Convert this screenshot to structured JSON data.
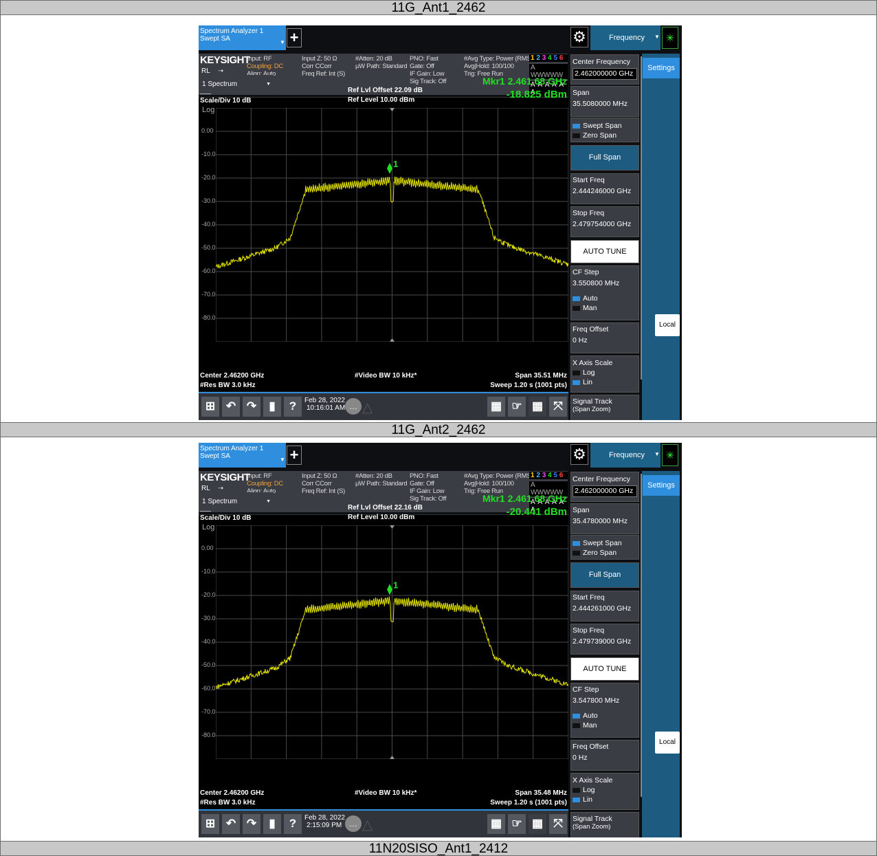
{
  "rows": [
    {
      "title": "11G_Ant1_2462"
    },
    {
      "title": "11G_Ant2_2462"
    },
    {
      "title": "11N20SISO_Ant1_2412"
    }
  ],
  "panels": [
    {
      "tab_line1": "Spectrum Analyzer 1",
      "tab_line2": "Swept SA",
      "freq_tab": "Frequency",
      "brand": "KEYSIGHT",
      "rl": "RL",
      "lxi": "LXI",
      "input": "Input: RF",
      "coupling": "Coupling: DC",
      "align": "Align: Auto",
      "input_z": "Input Z: 50 Ω",
      "corr": "Corr CCorr",
      "freq_ref": "Freq Ref: Int (S)",
      "atten": "#Atten: 20 dB",
      "uw_path": "µW Path: Standard",
      "pno": "PNO: Fast",
      "gate": "Gate: Off",
      "if_gain": "IF Gain: Low",
      "sig_track": "Sig Track: Off",
      "avg_type": "#Avg Type: Power (RMS)",
      "avg_hold": "Avg|Hold: 100/100",
      "trig": "Trig: Free Run",
      "trace_nums": "1 2 3 4 5 6",
      "trace_w": "A WWWWW",
      "trace_a": "A A A A A A",
      "spectrum_label": "1 Spectrum",
      "scale_div": "Scale/Div 10 dB",
      "log": "Log",
      "ref_offset": "Ref Lvl Offset 22.09 dB",
      "ref_level": "Ref Level 10.00 dBm",
      "mkr_freq": "Mkr1  2.461 68 GHz",
      "mkr_amp": "-18.825 dBm",
      "marker_label": "1",
      "yticks": [
        "0.00",
        "-10.0",
        "-20.0",
        "-30.0",
        "-40.0",
        "-50.0",
        "-60.0",
        "-70.0",
        "-80.0"
      ],
      "center": "Center 2.46200 GHz",
      "res_bw": "#Res BW 3.0 kHz",
      "video_bw": "#Video BW 10 kHz*",
      "span_text": "Span 35.51 MHz",
      "sweep": "Sweep 1.20 s (1001 pts)",
      "date": "Feb 28, 2022",
      "time": "10:16:01 AM",
      "center_freq_label": "Center Frequency",
      "center_freq_value": "2.462000000 GHz",
      "settings": "Settings",
      "span_label": "Span",
      "span_value": "35.5080000 MHz",
      "swept_span": "Swept Span",
      "zero_span": "Zero Span",
      "full_span": "Full Span",
      "start_freq_label": "Start Freq",
      "start_freq_value": "2.444246000 GHz",
      "stop_freq_label": "Stop Freq",
      "stop_freq_value": "2.479754000 GHz",
      "auto_tune": "AUTO TUNE",
      "cf_step_label": "CF Step",
      "cf_step_value": "3.550800 MHz",
      "auto": "Auto",
      "man": "Man",
      "freq_offset_label": "Freq Offset",
      "freq_offset_value": "0 Hz",
      "x_axis_scale": "X Axis Scale",
      "log_opt": "Log",
      "lin_opt": "Lin",
      "signal_track": "Signal Track",
      "span_zoom": "(Span Zoom)",
      "local": "Local"
    },
    {
      "tab_line1": "Spectrum Analyzer 1",
      "tab_line2": "Swept SA",
      "freq_tab": "Frequency",
      "brand": "KEYSIGHT",
      "rl": "RL",
      "lxi": "LXI",
      "input": "Input: RF",
      "coupling": "Coupling: DC",
      "align": "Align: Auto",
      "input_z": "Input Z: 50 Ω",
      "corr": "Corr CCorr",
      "freq_ref": "Freq Ref: Int (S)",
      "atten": "#Atten: 20 dB",
      "uw_path": "µW Path: Standard",
      "pno": "PNO: Fast",
      "gate": "Gate: Off",
      "if_gain": "IF Gain: Low",
      "sig_track": "Sig Track: Off",
      "avg_type": "#Avg Type: Power (RMS)",
      "avg_hold": "Avg|Hold: 100/100",
      "trig": "Trig: Free Run",
      "trace_nums": "1 2 3 4 5 6",
      "trace_w": "A WWWWW",
      "trace_a": "A A A A A A",
      "spectrum_label": "1 Spectrum",
      "scale_div": "Scale/Div 10 dB",
      "log": "Log",
      "ref_offset": "Ref Lvl Offset 22.16 dB",
      "ref_level": "Ref Level 10.00 dBm",
      "mkr_freq": "Mkr1  2.461 68 GHz",
      "mkr_amp": "-20.441 dBm",
      "marker_label": "1",
      "yticks": [
        "0.00",
        "-10.0",
        "-20.0",
        "-30.0",
        "-40.0",
        "-50.0",
        "-60.0",
        "-70.0",
        "-80.0"
      ],
      "center": "Center 2.46200 GHz",
      "res_bw": "#Res BW 3.0 kHz",
      "video_bw": "#Video BW 10 kHz*",
      "span_text": "Span 35.48 MHz",
      "sweep": "Sweep 1.20 s (1001 pts)",
      "date": "Feb 28, 2022",
      "time": "2:15:09 PM",
      "center_freq_label": "Center Frequency",
      "center_freq_value": "2.462000000 GHz",
      "settings": "Settings",
      "span_label": "Span",
      "span_value": "35.4780000 MHz",
      "swept_span": "Swept Span",
      "zero_span": "Zero Span",
      "full_span": "Full Span",
      "start_freq_label": "Start Freq",
      "start_freq_value": "2.444261000 GHz",
      "stop_freq_label": "Stop Freq",
      "stop_freq_value": "2.479739000 GHz",
      "auto_tune": "AUTO TUNE",
      "cf_step_label": "CF Step",
      "cf_step_value": "3.547800 MHz",
      "auto": "Auto",
      "man": "Man",
      "freq_offset_label": "Freq Offset",
      "freq_offset_value": "0 Hz",
      "x_axis_scale": "X Axis Scale",
      "log_opt": "Log",
      "lin_opt": "Lin",
      "signal_track": "Signal Track",
      "span_zoom": "(Span Zoom)",
      "local": "Local"
    }
  ],
  "colors": {
    "accent": "#2f8fde",
    "side_panel": "#1d5b80",
    "trace": "#e8e800",
    "marker": "#21e021"
  }
}
